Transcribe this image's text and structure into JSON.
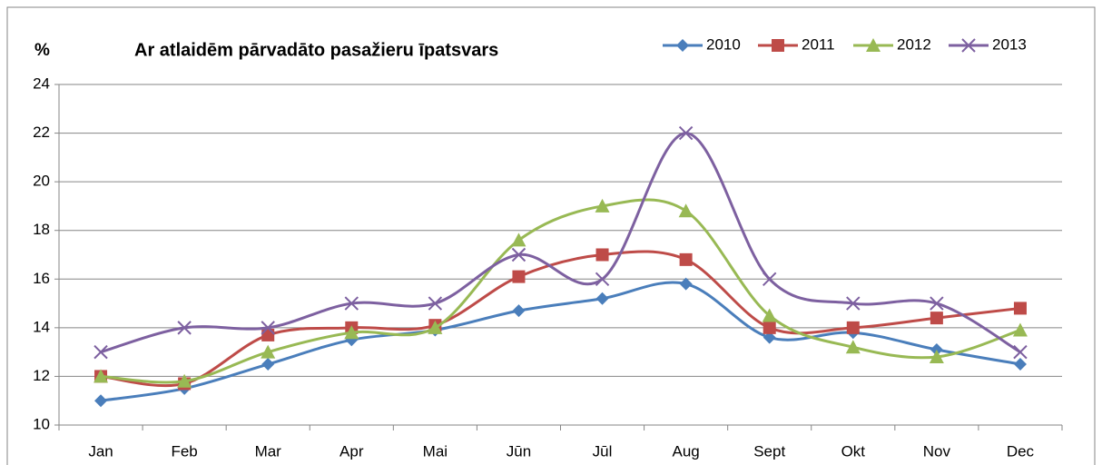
{
  "chart_data": {
    "type": "line",
    "title": "Ar atlaidēm pārvadāto pasažieru īpatsvars",
    "y_label": "%",
    "categories": [
      "Jan",
      "Feb",
      "Mar",
      "Apr",
      "Mai",
      "Jūn",
      "Jūl",
      "Aug",
      "Sept",
      "Okt",
      "Nov",
      "Dec"
    ],
    "series": [
      {
        "name": "2010",
        "color": "#4a7ebb",
        "marker": "diamond",
        "values": [
          11.0,
          11.5,
          12.5,
          13.5,
          13.9,
          14.7,
          15.2,
          15.8,
          13.6,
          13.8,
          13.1,
          12.5
        ]
      },
      {
        "name": "2011",
        "color": "#be4b48",
        "marker": "square",
        "values": [
          12.0,
          11.7,
          13.7,
          14.0,
          14.1,
          16.1,
          17.0,
          16.8,
          14.0,
          14.0,
          14.4,
          14.8
        ]
      },
      {
        "name": "2012",
        "color": "#98b954",
        "marker": "triangle",
        "values": [
          12.0,
          11.8,
          13.0,
          13.8,
          14.0,
          17.6,
          19.0,
          18.8,
          14.5,
          13.2,
          12.8,
          13.9
        ]
      },
      {
        "name": "2013",
        "color": "#7d60a0",
        "marker": "x",
        "values": [
          13.0,
          14.0,
          14.0,
          15.0,
          15.0,
          17.0,
          16.0,
          22.0,
          16.0,
          15.0,
          15.0,
          13.0
        ]
      }
    ],
    "ylim": [
      10,
      24
    ],
    "yticks": [
      10,
      12,
      14,
      16,
      18,
      20,
      22,
      24
    ],
    "grid": true,
    "smooth": true,
    "legend": "top-right"
  }
}
